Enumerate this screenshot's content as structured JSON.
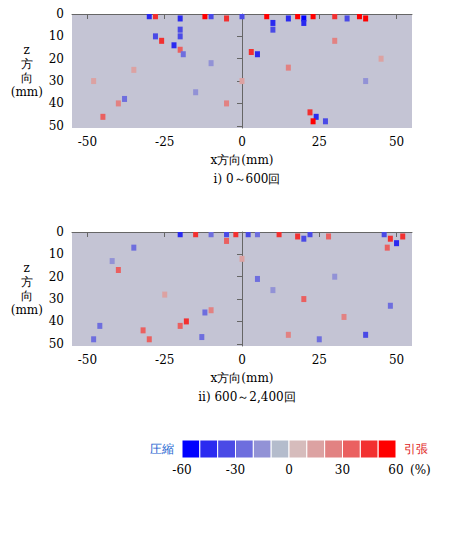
{
  "chart_data": [
    {
      "type": "heatmap",
      "title": "i) 0～600回",
      "x_label": "x方向(mm)",
      "y_label": "z方向(mm)",
      "xlim": [
        -55,
        55
      ],
      "xticks": [
        -50,
        -25,
        0,
        25,
        50
      ],
      "ylim": [
        0,
        51
      ],
      "yticks": [
        0,
        10,
        20,
        30,
        40,
        50
      ],
      "cells": [
        [
          -30,
          1,
          -50
        ],
        [
          -28,
          1,
          40
        ],
        [
          -20,
          2,
          -50
        ],
        [
          -12,
          1,
          50
        ],
        [
          -10,
          1,
          -40
        ],
        [
          -5,
          2,
          45
        ],
        [
          0,
          1,
          -40
        ],
        [
          8,
          1,
          50
        ],
        [
          15,
          2,
          -45
        ],
        [
          18,
          1,
          50
        ],
        [
          20,
          2,
          -55
        ],
        [
          23,
          1,
          55
        ],
        [
          30,
          1,
          40
        ],
        [
          34,
          2,
          -40
        ],
        [
          38,
          1,
          60
        ],
        [
          40,
          2,
          50
        ],
        [
          10,
          4,
          -45
        ],
        [
          10,
          7,
          -40
        ],
        [
          20,
          4,
          -45
        ],
        [
          -20,
          7,
          -40
        ],
        [
          -20,
          10,
          -35
        ],
        [
          -28,
          10,
          -40
        ],
        [
          -26,
          12,
          40
        ],
        [
          -22,
          14,
          -45
        ],
        [
          -20,
          16,
          30
        ],
        [
          -19,
          18,
          -30
        ],
        [
          3,
          17,
          45
        ],
        [
          5,
          18,
          -45
        ],
        [
          15,
          24,
          25
        ],
        [
          -10,
          22,
          -20
        ],
        [
          30,
          12,
          25
        ],
        [
          -38,
          38,
          -30
        ],
        [
          -5,
          40,
          25
        ],
        [
          -40,
          40,
          20
        ],
        [
          -45,
          46,
          35
        ],
        [
          22,
          44,
          40
        ],
        [
          24,
          46,
          -45
        ],
        [
          23,
          48,
          50
        ],
        [
          27,
          48,
          -40
        ],
        [
          -48,
          30,
          15
        ],
        [
          -35,
          25,
          15
        ],
        [
          40,
          30,
          -15
        ],
        [
          45,
          20,
          15
        ],
        [
          0,
          30,
          15
        ],
        [
          -15,
          35,
          -15
        ]
      ]
    },
    {
      "type": "heatmap",
      "title": "ii) 600～2,400回",
      "x_label": "x方向(mm)",
      "y_label": "z方向(mm)",
      "xlim": [
        -55,
        55
      ],
      "xticks": [
        -50,
        -25,
        0,
        25,
        50
      ],
      "ylim": [
        0,
        51
      ],
      "yticks": [
        0,
        10,
        20,
        30,
        40,
        50
      ],
      "cells": [
        [
          -20,
          1,
          -45
        ],
        [
          -15,
          1,
          40
        ],
        [
          -10,
          1,
          -30
        ],
        [
          -5,
          1,
          -40
        ],
        [
          -2,
          1,
          45
        ],
        [
          2,
          1,
          -40
        ],
        [
          5,
          1,
          -30
        ],
        [
          12,
          1,
          45
        ],
        [
          18,
          2,
          40
        ],
        [
          20,
          3,
          -40
        ],
        [
          22,
          1,
          -35
        ],
        [
          28,
          2,
          30
        ],
        [
          46,
          1,
          -40
        ],
        [
          48,
          3,
          40
        ],
        [
          50,
          5,
          -50
        ],
        [
          52,
          2,
          45
        ],
        [
          47,
          7,
          30
        ],
        [
          -5,
          4,
          30
        ],
        [
          -40,
          17,
          30
        ],
        [
          -42,
          13,
          -20
        ],
        [
          -35,
          7,
          -25
        ],
        [
          5,
          21,
          -30
        ],
        [
          -10,
          35,
          25
        ],
        [
          20,
          30,
          30
        ],
        [
          10,
          26,
          -20
        ],
        [
          48,
          33,
          -30
        ],
        [
          -32,
          44,
          35
        ],
        [
          -30,
          48,
          30
        ],
        [
          -20,
          42,
          30
        ],
        [
          -13,
          47,
          -30
        ],
        [
          -12,
          36,
          -25
        ],
        [
          -18,
          40,
          45
        ],
        [
          25,
          48,
          -30
        ],
        [
          15,
          46,
          25
        ],
        [
          40,
          46,
          -35
        ],
        [
          -46,
          42,
          -25
        ],
        [
          -48,
          48,
          -30
        ],
        [
          33,
          38,
          25
        ],
        [
          0,
          12,
          15
        ],
        [
          30,
          20,
          -15
        ],
        [
          -25,
          28,
          15
        ]
      ]
    }
  ],
  "colorbar": {
    "range": [
      -60,
      60
    ],
    "ticks": [
      -60,
      -30,
      0,
      30,
      60
    ],
    "unit": "(%)",
    "low_label": "圧縮",
    "high_label": "引張"
  }
}
